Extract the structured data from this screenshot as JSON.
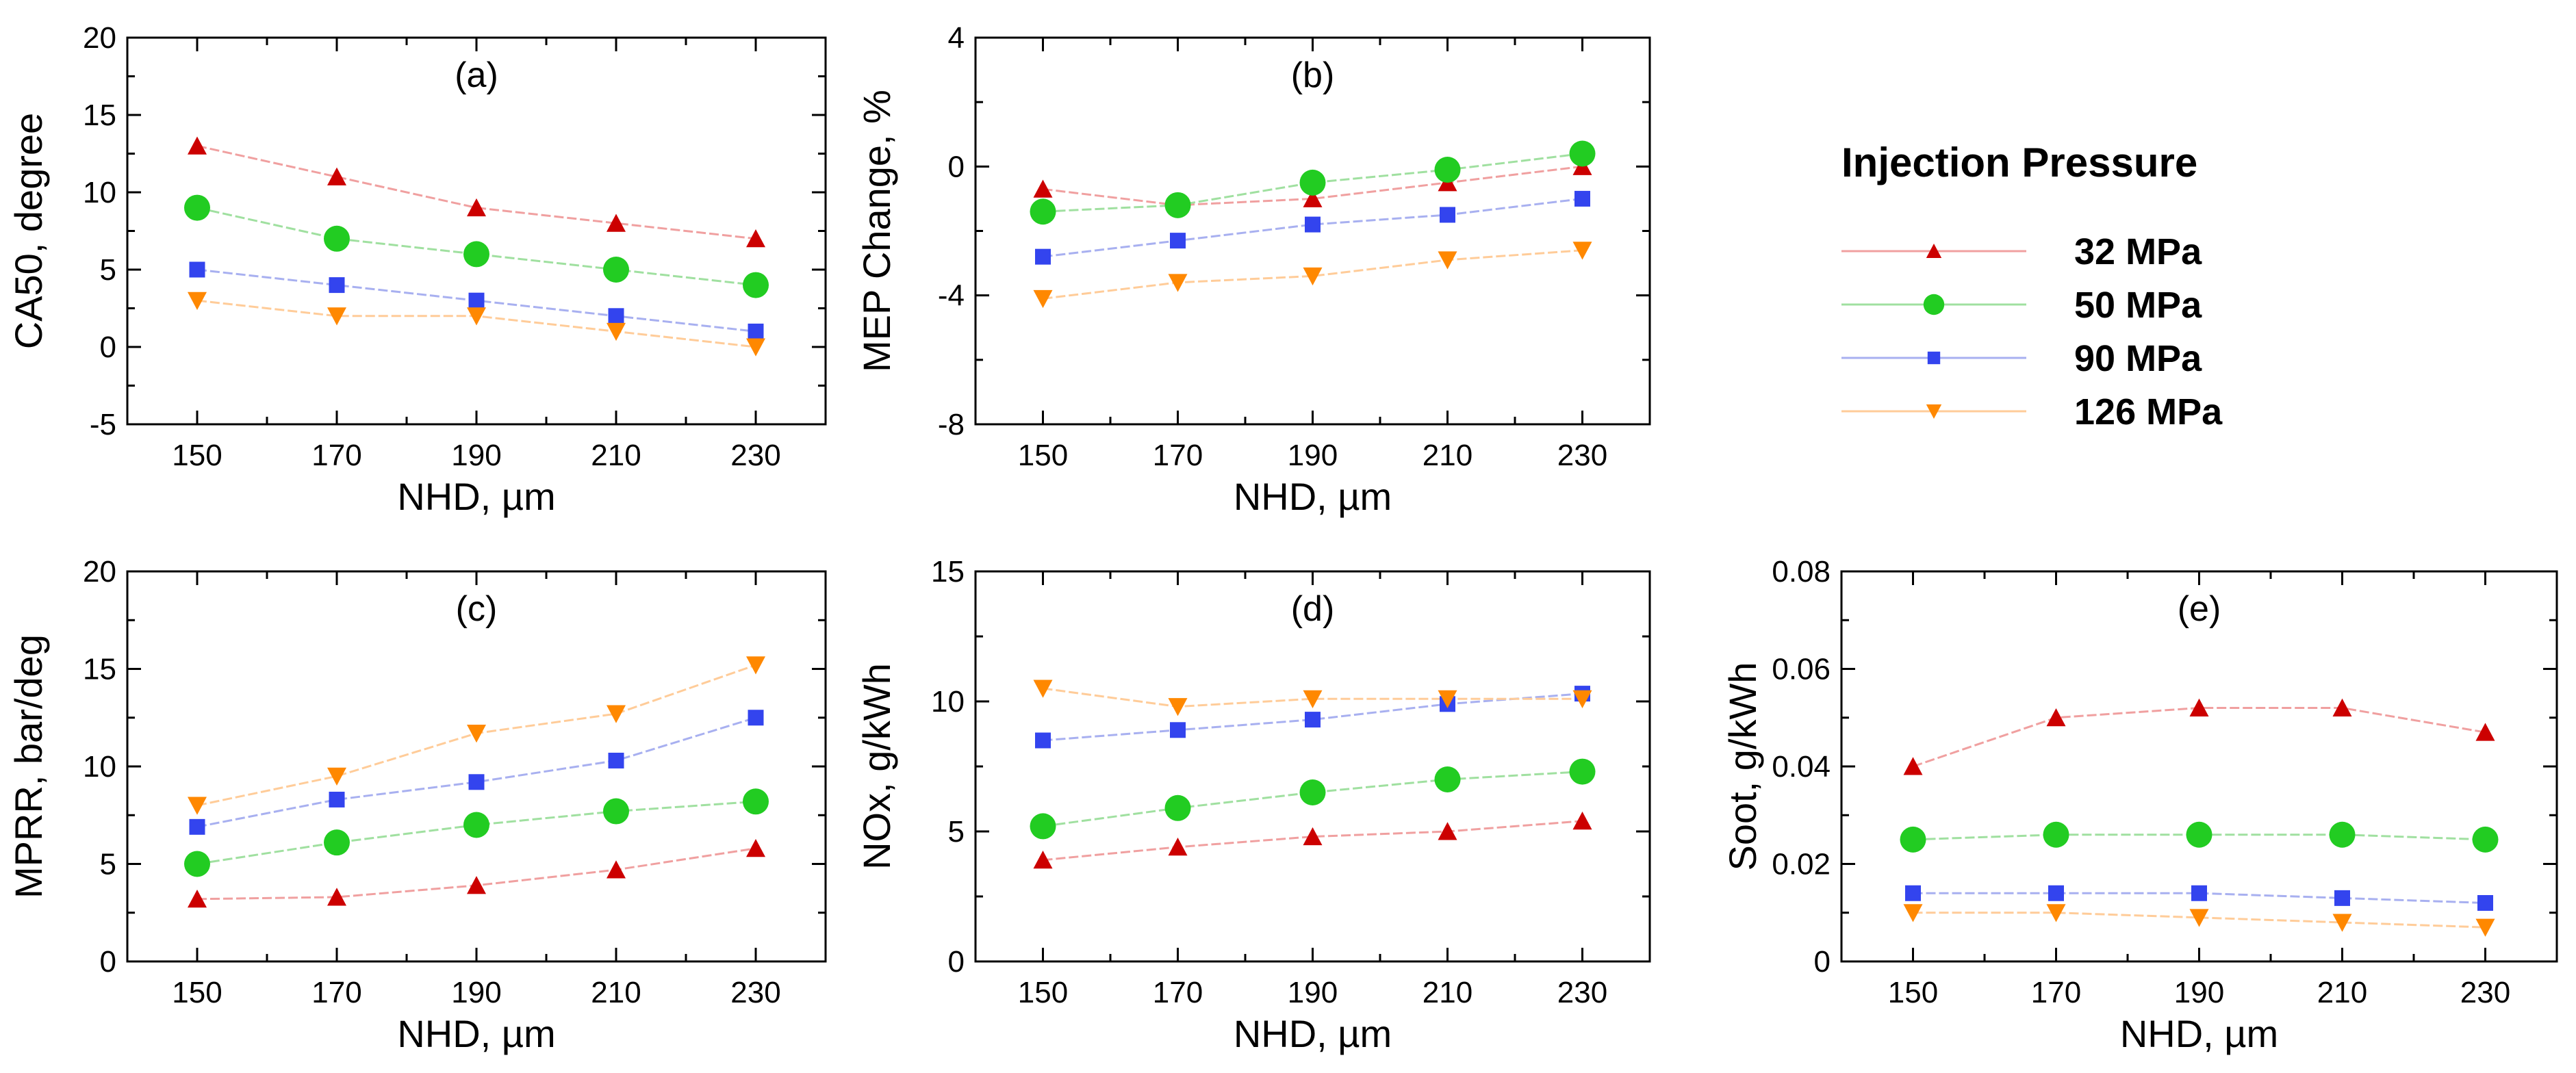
{
  "legend": {
    "title": "Injection Pressure",
    "entries": [
      {
        "label": "32 MPa",
        "color": "#cc0000",
        "line": "#f0a0a0",
        "marker": "triangle-up"
      },
      {
        "label": "50 MPa",
        "color": "#22cc22",
        "line": "#a0e0a0",
        "marker": "circle"
      },
      {
        "label": "90 MPa",
        "color": "#3344ee",
        "line": "#a8b0f0",
        "marker": "square"
      },
      {
        "label": "126 MPa",
        "color": "#ff8800",
        "line": "#ffcc99",
        "marker": "triangle-down"
      }
    ]
  },
  "chart_data": [
    {
      "type": "line",
      "panel": "(a)",
      "xlabel": "NHD, µm",
      "ylabel": "CA50, degree",
      "categories": [
        150,
        170,
        190,
        210,
        230
      ],
      "ylim": [
        -5,
        20
      ],
      "yticks": [
        -5,
        0,
        5,
        10,
        15,
        20
      ],
      "yticklabels": [
        "-5",
        "0",
        "5",
        "10",
        "15",
        "20"
      ],
      "series": [
        {
          "name": "32 MPa",
          "values": [
            13,
            11,
            9,
            8,
            7
          ]
        },
        {
          "name": "50 MPa",
          "values": [
            9,
            7,
            6,
            5,
            4
          ]
        },
        {
          "name": "90 MPa",
          "values": [
            5,
            4,
            3,
            2,
            1
          ]
        },
        {
          "name": "126 MPa",
          "values": [
            3,
            2,
            2,
            1,
            0
          ]
        }
      ]
    },
    {
      "type": "line",
      "panel": "(b)",
      "xlabel": "NHD, µm",
      "ylabel": "MEP Change, %",
      "categories": [
        150,
        170,
        190,
        210,
        230
      ],
      "ylim": [
        -8,
        4
      ],
      "yticks": [
        -8,
        -4,
        0,
        4
      ],
      "yticklabels": [
        "-8",
        "-4",
        "0",
        "4"
      ],
      "series": [
        {
          "name": "32 MPa",
          "values": [
            -0.7,
            -1.2,
            -1.0,
            -0.5,
            0.0
          ]
        },
        {
          "name": "50 MPa",
          "values": [
            -1.4,
            -1.2,
            -0.5,
            -0.1,
            0.4
          ]
        },
        {
          "name": "90 MPa",
          "values": [
            -2.8,
            -2.3,
            -1.8,
            -1.5,
            -1.0
          ]
        },
        {
          "name": "126 MPa",
          "values": [
            -4.1,
            -3.6,
            -3.4,
            -2.9,
            -2.6
          ]
        }
      ]
    },
    {
      "type": "line",
      "panel": "(c)",
      "xlabel": "NHD, µm",
      "ylabel": "MPRR, bar/deg",
      "categories": [
        150,
        170,
        190,
        210,
        230
      ],
      "ylim": [
        0,
        20
      ],
      "yticks": [
        0,
        5,
        10,
        15,
        20
      ],
      "yticklabels": [
        "0",
        "5",
        "10",
        "15",
        "20"
      ],
      "series": [
        {
          "name": "32 MPa",
          "values": [
            3.2,
            3.3,
            3.9,
            4.7,
            5.8
          ]
        },
        {
          "name": "50 MPa",
          "values": [
            5.0,
            6.1,
            7.0,
            7.7,
            8.2
          ]
        },
        {
          "name": "90 MPa",
          "values": [
            6.9,
            8.3,
            9.2,
            10.3,
            12.5
          ]
        },
        {
          "name": "126 MPa",
          "values": [
            8.0,
            9.5,
            11.7,
            12.7,
            15.2
          ]
        }
      ]
    },
    {
      "type": "line",
      "panel": "(d)",
      "xlabel": "NHD, µm",
      "ylabel": "NOx, g/kWh",
      "categories": [
        150,
        170,
        190,
        210,
        230
      ],
      "ylim": [
        0,
        15
      ],
      "yticks": [
        0,
        5,
        10,
        15
      ],
      "yticklabels": [
        "0",
        "5",
        "10",
        "15"
      ],
      "series": [
        {
          "name": "32 MPa",
          "values": [
            3.9,
            4.4,
            4.8,
            5.0,
            5.4
          ]
        },
        {
          "name": "50 MPa",
          "values": [
            5.2,
            5.9,
            6.5,
            7.0,
            7.3
          ]
        },
        {
          "name": "90 MPa",
          "values": [
            8.5,
            8.9,
            9.3,
            9.9,
            10.3
          ]
        },
        {
          "name": "126 MPa",
          "values": [
            10.5,
            9.8,
            10.1,
            10.1,
            10.1
          ]
        }
      ]
    },
    {
      "type": "line",
      "panel": "(e)",
      "xlabel": "NHD, µm",
      "ylabel": "Soot, g/kWh",
      "categories": [
        150,
        170,
        190,
        210,
        230
      ],
      "ylim": [
        0,
        0.08
      ],
      "yticks": [
        0,
        0.02,
        0.04,
        0.06,
        0.08
      ],
      "yticklabels": [
        "0",
        "0.02",
        "0.04",
        "0.06",
        "0.08"
      ],
      "series": [
        {
          "name": "32 MPa",
          "values": [
            0.04,
            0.05,
            0.052,
            0.052,
            0.047
          ]
        },
        {
          "name": "50 MPa",
          "values": [
            0.025,
            0.026,
            0.026,
            0.026,
            0.025
          ]
        },
        {
          "name": "90 MPa",
          "values": [
            0.014,
            0.014,
            0.014,
            0.013,
            0.012
          ]
        },
        {
          "name": "126 MPa",
          "values": [
            0.01,
            0.01,
            0.009,
            0.008,
            0.007
          ]
        }
      ]
    }
  ]
}
